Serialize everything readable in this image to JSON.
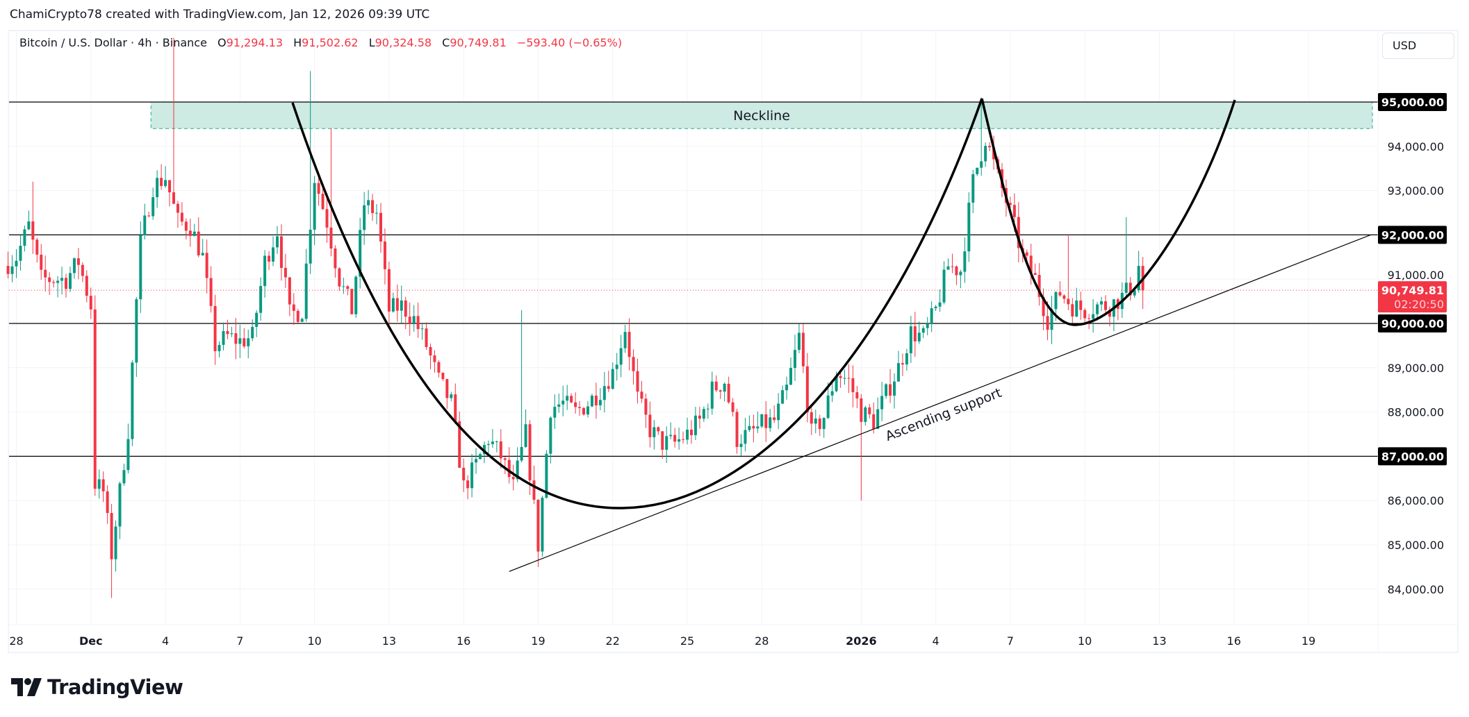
{
  "credit": "ChamiCrypto78 created with TradingView.com, Jan 12, 2026 09:39 UTC",
  "legend": {
    "symbol": "Bitcoin / U.S. Dollar · 4h · Binance",
    "open_label": "O",
    "open": "91,294.13",
    "high_label": "H",
    "high": "91,502.62",
    "low_label": "L",
    "low": "90,324.58",
    "close_label": "C",
    "close": "90,749.81",
    "change": "−593.40 (−0.65%)"
  },
  "currency_button": "USD",
  "brand": "TradingView",
  "colors": {
    "up": "#089981",
    "down": "#f23645",
    "zone_fill": "#cdeae3",
    "zone_border": "#22ab94",
    "drawing": "#000000"
  },
  "chart_data": {
    "type": "candlestick",
    "interval": "4h",
    "ylim": [
      83300,
      96800
    ],
    "grid": true,
    "y_ticks": [
      "84,000.00",
      "85,000.00",
      "86,000.00",
      "87,000.00",
      "88,000.00",
      "89,000.00",
      "90,000.00",
      "91,000.00",
      "92,000.00",
      "93,000.00",
      "94,000.00",
      "95,000.00"
    ],
    "y_tick_values": [
      84000,
      85000,
      86000,
      87000,
      88000,
      89000,
      90000,
      91000,
      92000,
      93000,
      94000,
      95000
    ],
    "x_ticks": [
      {
        "label": "28",
        "date": "2025-11-28"
      },
      {
        "label": "Dec",
        "date": "2025-12-01"
      },
      {
        "label": "4",
        "date": "2025-12-04"
      },
      {
        "label": "7",
        "date": "2025-12-07"
      },
      {
        "label": "10",
        "date": "2025-12-10"
      },
      {
        "label": "13",
        "date": "2025-12-13"
      },
      {
        "label": "16",
        "date": "2025-12-16"
      },
      {
        "label": "19",
        "date": "2025-12-19"
      },
      {
        "label": "22",
        "date": "2025-12-22"
      },
      {
        "label": "25",
        "date": "2025-12-25"
      },
      {
        "label": "28",
        "date": "2025-12-28"
      },
      {
        "label": "2026",
        "date": "2026-01-01"
      },
      {
        "label": "4",
        "date": "2026-01-04"
      },
      {
        "label": "7",
        "date": "2026-01-07"
      },
      {
        "label": "10",
        "date": "2026-01-10"
      },
      {
        "label": "13",
        "date": "2026-01-13"
      },
      {
        "label": "16",
        "date": "2026-01-16"
      },
      {
        "label": "19",
        "date": "2026-01-19"
      }
    ],
    "price_path": [
      [
        "2025-11-27 12:00",
        91300
      ],
      [
        "2025-11-28 00:00",
        91500
      ],
      [
        "2025-11-28 12:00",
        92200
      ],
      [
        "2025-11-29 00:00",
        91000
      ],
      [
        "2025-11-29 12:00",
        91000
      ],
      [
        "2025-11-30 00:00",
        91000
      ],
      [
        "2025-11-30 12:00",
        91400
      ],
      [
        "2025-12-01 00:00",
        90400
      ],
      [
        "2025-12-01 04:00",
        86400
      ],
      [
        "2025-12-01 12:00",
        86200
      ],
      [
        "2025-12-01 20:00",
        84800
      ],
      [
        "2025-12-02 00:00",
        85500
      ],
      [
        "2025-12-02 12:00",
        87600
      ],
      [
        "2025-12-02 20:00",
        90500
      ],
      [
        "2025-12-03 00:00",
        91800
      ],
      [
        "2025-12-03 12:00",
        93100
      ],
      [
        "2025-12-04 00:00",
        93300
      ],
      [
        "2025-12-04 12:00",
        92300
      ],
      [
        "2025-12-05 00:00",
        92200
      ],
      [
        "2025-12-05 12:00",
        91500
      ],
      [
        "2025-12-06 00:00",
        89500
      ],
      [
        "2025-12-06 12:00",
        89700
      ],
      [
        "2025-12-07 00:00",
        89600
      ],
      [
        "2025-12-07 12:00",
        89700
      ],
      [
        "2025-12-08 00:00",
        91400
      ],
      [
        "2025-12-08 12:00",
        92100
      ],
      [
        "2025-12-09 00:00",
        90200
      ],
      [
        "2025-12-09 12:00",
        90300
      ],
      [
        "2025-12-10 00:00",
        93300
      ],
      [
        "2025-12-10 12:00",
        92300
      ],
      [
        "2025-12-11 00:00",
        91000
      ],
      [
        "2025-12-11 12:00",
        90300
      ],
      [
        "2025-12-12 00:00",
        92700
      ],
      [
        "2025-12-12 12:00",
        92500
      ],
      [
        "2025-12-13 00:00",
        90300
      ],
      [
        "2025-12-13 12:00",
        90400
      ],
      [
        "2025-12-14 00:00",
        90100
      ],
      [
        "2025-12-14 12:00",
        89500
      ],
      [
        "2025-12-15 00:00",
        88700
      ],
      [
        "2025-12-15 12:00",
        88200
      ],
      [
        "2025-12-16 00:00",
        86300
      ],
      [
        "2025-12-16 12:00",
        86800
      ],
      [
        "2025-12-17 00:00",
        87400
      ],
      [
        "2025-12-17 12:00",
        87000
      ],
      [
        "2025-12-18 00:00",
        86300
      ],
      [
        "2025-12-18 12:00",
        87500
      ],
      [
        "2025-12-19 00:00",
        85000
      ],
      [
        "2025-12-19 12:00",
        88100
      ],
      [
        "2025-12-20 00:00",
        88200
      ],
      [
        "2025-12-20 12:00",
        88000
      ],
      [
        "2025-12-21 00:00",
        88200
      ],
      [
        "2025-12-21 12:00",
        88500
      ],
      [
        "2025-12-22 00:00",
        88900
      ],
      [
        "2025-12-22 12:00",
        89900
      ],
      [
        "2025-12-23 00:00",
        88300
      ],
      [
        "2025-12-23 12:00",
        87600
      ],
      [
        "2025-12-24 00:00",
        87300
      ],
      [
        "2025-12-24 12:00",
        87300
      ],
      [
        "2025-12-25 00:00",
        87500
      ],
      [
        "2025-12-25 12:00",
        87800
      ],
      [
        "2025-12-26 00:00",
        88500
      ],
      [
        "2025-12-26 12:00",
        88700
      ],
      [
        "2025-12-27 00:00",
        87400
      ],
      [
        "2025-12-27 12:00",
        87500
      ],
      [
        "2025-12-28 00:00",
        87700
      ],
      [
        "2025-12-28 12:00",
        87800
      ],
      [
        "2025-12-29 00:00",
        88500
      ],
      [
        "2025-12-29 12:00",
        89700
      ],
      [
        "2025-12-30 00:00",
        87500
      ],
      [
        "2025-12-30 12:00",
        87900
      ],
      [
        "2025-12-31 00:00",
        88900
      ],
      [
        "2025-12-31 12:00",
        88700
      ],
      [
        "2026-01-01 00:00",
        88000
      ],
      [
        "2026-01-01 12:00",
        87800
      ],
      [
        "2026-01-02 00:00",
        88400
      ],
      [
        "2026-01-02 12:00",
        89000
      ],
      [
        "2026-01-03 00:00",
        89800
      ],
      [
        "2026-01-03 12:00",
        89700
      ],
      [
        "2026-01-04 00:00",
        90300
      ],
      [
        "2026-01-04 12:00",
        91300
      ],
      [
        "2026-01-05 00:00",
        91200
      ],
      [
        "2026-01-05 12:00",
        93200
      ],
      [
        "2026-01-06 00:00",
        94200
      ],
      [
        "2026-01-06 12:00",
        93300
      ],
      [
        "2026-01-07 00:00",
        92500
      ],
      [
        "2026-01-07 12:00",
        91500
      ],
      [
        "2026-01-08 00:00",
        91000
      ],
      [
        "2026-01-08 12:00",
        90100
      ],
      [
        "2026-01-09 00:00",
        90700
      ],
      [
        "2026-01-09 12:00",
        90400
      ],
      [
        "2026-01-10 00:00",
        90300
      ],
      [
        "2026-01-10 12:00",
        90400
      ],
      [
        "2026-01-11 00:00",
        90400
      ],
      [
        "2026-01-11 12:00",
        90600
      ],
      [
        "2026-01-12 00:00",
        90900
      ],
      [
        "2026-01-12 04:00",
        91294.13
      ],
      [
        "2026-01-12 08:00",
        90749.81
      ]
    ],
    "wick_extremes": [
      [
        "2025-11-28 16:00",
        "high",
        93200
      ],
      [
        "2025-12-01 20:00",
        "low",
        83800
      ],
      [
        "2025-12-04 08:00",
        "high",
        96450
      ],
      [
        "2025-12-09 20:00",
        "high",
        95700
      ],
      [
        "2025-12-10 16:00",
        "high",
        94400
      ],
      [
        "2025-12-18 08:00",
        "high",
        90300
      ],
      [
        "2025-12-19 00:00",
        "low",
        84500
      ],
      [
        "2026-01-01 00:00",
        "low",
        86000
      ],
      [
        "2026-01-05 20:00",
        "high",
        95100
      ],
      [
        "2026-01-09 08:00",
        "high",
        92000
      ],
      [
        "2026-01-11 16:00",
        "high",
        92400
      ],
      [
        "2026-01-12 08:00",
        "high",
        91502.62
      ],
      [
        "2026-01-12 08:00",
        "low",
        90324.58
      ]
    ],
    "horizontal_levels": [
      95000,
      92000,
      90000,
      87000
    ],
    "level_labels": [
      "95,000.00",
      "92,000.00",
      "90,000.00",
      "87,000.00"
    ],
    "zone": {
      "label": "Neckline",
      "from_price": 94400,
      "to_price": 95000,
      "start": "2025-12-03 10:00",
      "end": "2026-01-22 00:00"
    },
    "trendline": {
      "label": "Ascending support",
      "start": [
        "2025-12-17 20:00",
        84400
      ],
      "end": [
        "2026-01-21 12:00",
        92000
      ]
    },
    "last_price": {
      "value": "90,749.81",
      "countdown": "02:20:50",
      "price": 90749.81
    }
  }
}
